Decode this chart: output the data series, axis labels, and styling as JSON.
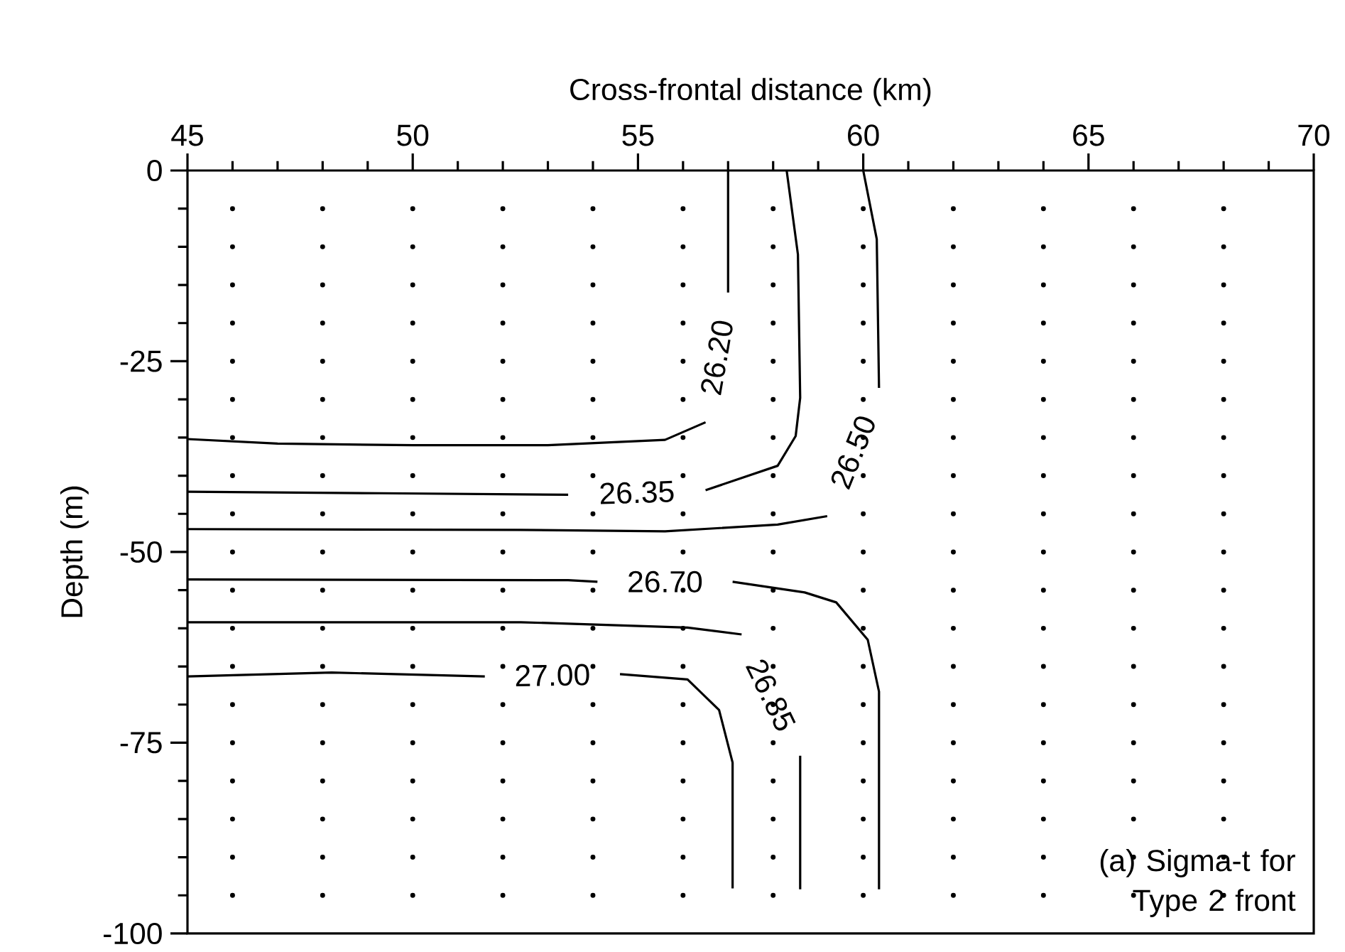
{
  "chart_data": {
    "type": "line",
    "xlabel": "Cross-frontal distance (km)",
    "ylabel": "Depth (m)",
    "xlim": [
      45,
      70
    ],
    "xticks": [
      45,
      50,
      55,
      60,
      65,
      70
    ],
    "ylim": [
      -100,
      0
    ],
    "yticks": [
      0,
      -25,
      -50,
      -75,
      -100
    ],
    "annotations": [
      "(a) Sigma-t for Type 2 front"
    ],
    "series": [
      {
        "name": "26.20",
        "color": "#000000",
        "x": [
          57.0,
          57.0,
          56.75,
          56.5,
          55.6,
          53.0,
          50.0,
          47.0,
          45.0
        ],
        "values": [
          0,
          -16,
          null,
          -33,
          -35.3,
          -36,
          -36,
          -35.8,
          -35.2
        ]
      },
      {
        "name": "26.35",
        "color": "#000000",
        "x": [
          58.3,
          58.55,
          58.6,
          58.5,
          58.1,
          56.5,
          55.0,
          53.45,
          49.3,
          45.0
        ],
        "values": [
          0,
          -11,
          -29.8,
          -34.8,
          -38.7,
          -41.9,
          null,
          -42.5,
          -42.3,
          -42.1
        ]
      },
      {
        "name": "26.50",
        "color": "#000000",
        "x": [
          60.0,
          60.3,
          60.35,
          59.8,
          59.2,
          58.1,
          55.6,
          52.4,
          45.0
        ],
        "values": [
          0,
          -9,
          -28.5,
          null,
          -45.3,
          -46.4,
          -47.3,
          -47.1,
          -47.0
        ]
      },
      {
        "name": "26.70",
        "color": "#000000",
        "x": [
          45.0,
          53.45,
          54.1,
          55.6,
          57.1,
          58.7,
          59.4,
          60.1,
          60.35,
          60.35
        ],
        "values": [
          -53.6,
          -53.7,
          -53.9,
          null,
          -53.9,
          -55.3,
          -56.6,
          -61.5,
          -68.3,
          -94.2
        ]
      },
      {
        "name": "26.85",
        "color": "#000000",
        "x": [
          45.0,
          52.4,
          56.1,
          57.3,
          57.95,
          58.6,
          58.6
        ],
        "values": [
          -59.2,
          -59.2,
          -59.9,
          -60.8,
          null,
          -76.7,
          -94.2
        ]
      },
      {
        "name": "27.00",
        "color": "#000000",
        "x": [
          45.0,
          48.2,
          51.6,
          53.1,
          54.6,
          56.1,
          56.8,
          57.1,
          57.1
        ],
        "values": [
          -66.3,
          -65.8,
          -66.3,
          null,
          -66.0,
          -66.7,
          -70.7,
          -77.6,
          -94.1
        ]
      },
      {
        "type": "scatter",
        "marker": "circle",
        "color": "#000000",
        "x": [
          46,
          48,
          50,
          52,
          54,
          56,
          58,
          60,
          62,
          64,
          66,
          68,
          46,
          48,
          50,
          52,
          54,
          56,
          58,
          60,
          62,
          64,
          66,
          68,
          46,
          48,
          50,
          52,
          54,
          56,
          58,
          60,
          62,
          64,
          66,
          68,
          46,
          48,
          50,
          52,
          54,
          56,
          58,
          60,
          62,
          64,
          66,
          68,
          46,
          48,
          50,
          52,
          54,
          56,
          58,
          60,
          62,
          64,
          66,
          68,
          46,
          48,
          50,
          52,
          54,
          56,
          58,
          60,
          62,
          64,
          66,
          68,
          46,
          48,
          50,
          52,
          54,
          56,
          58,
          60,
          62,
          64,
          66,
          68,
          46,
          48,
          50,
          52,
          54,
          56,
          58,
          60,
          62,
          64,
          66,
          68,
          46,
          48,
          50,
          52,
          54,
          56,
          58,
          60,
          62,
          64,
          66,
          68,
          46,
          48,
          50,
          52,
          54,
          56,
          58,
          60,
          62,
          64,
          66,
          68,
          46,
          48,
          50,
          52,
          54,
          56,
          58,
          60,
          62,
          64,
          66,
          68,
          46,
          48,
          50,
          52,
          54,
          56,
          58,
          60,
          62,
          64,
          66,
          68,
          46,
          48,
          50,
          52,
          54,
          56,
          58,
          60,
          62,
          64,
          66,
          68,
          46,
          48,
          50,
          52,
          54,
          56,
          58,
          60,
          62,
          64,
          66,
          68,
          46,
          48,
          50,
          52,
          54,
          56,
          58,
          60,
          62,
          64,
          66,
          68,
          46,
          48,
          50,
          52,
          54,
          56,
          58,
          60,
          62,
          64,
          66,
          68,
          46,
          48,
          50,
          52,
          54,
          56,
          58,
          60,
          62,
          64,
          66,
          68,
          46,
          48,
          50,
          52,
          54,
          56,
          58,
          60,
          62,
          64,
          66,
          68,
          46,
          48,
          50,
          52,
          54,
          56,
          58,
          60,
          62,
          64,
          66,
          68
        ],
        "values": [
          -5,
          -5,
          -5,
          -5,
          -5,
          -5,
          -5,
          -5,
          -5,
          -5,
          -5,
          -5,
          -10,
          -10,
          -10,
          -10,
          -10,
          -10,
          -10,
          -10,
          -10,
          -10,
          -10,
          -10,
          -15,
          -15,
          -15,
          -15,
          -15,
          -15,
          -15,
          -15,
          -15,
          -15,
          -15,
          -15,
          -20,
          -20,
          -20,
          -20,
          -20,
          -20,
          -20,
          -20,
          -20,
          -20,
          -20,
          -20,
          -25,
          -25,
          -25,
          -25,
          -25,
          -25,
          -25,
          -25,
          -25,
          -25,
          -25,
          -25,
          -30,
          -30,
          -30,
          -30,
          -30,
          -30,
          -30,
          -30,
          -30,
          -30,
          -30,
          -30,
          -35,
          -35,
          -35,
          -35,
          -35,
          -35,
          -35,
          -35,
          -35,
          -35,
          -35,
          -35,
          -40,
          -40,
          -40,
          -40,
          -40,
          -40,
          -40,
          -40,
          -40,
          -40,
          -40,
          -40,
          -45,
          -45,
          -45,
          -45,
          -45,
          -45,
          -45,
          -45,
          -45,
          -45,
          -45,
          -45,
          -50,
          -50,
          -50,
          -50,
          -50,
          -50,
          -50,
          -50,
          -50,
          -50,
          -50,
          -50,
          -55,
          -55,
          -55,
          -55,
          -55,
          -55,
          -55,
          -55,
          -55,
          -55,
          -55,
          -55,
          -60,
          -60,
          -60,
          -60,
          -60,
          -60,
          -60,
          -60,
          -60,
          -60,
          -60,
          -60,
          -65,
          -65,
          -65,
          -65,
          -65,
          -65,
          -65,
          -65,
          -65,
          -65,
          -65,
          -65,
          -70,
          -70,
          -70,
          -70,
          -70,
          -70,
          -70,
          -70,
          -70,
          -70,
          -70,
          -70,
          -75,
          -75,
          -75,
          -75,
          -75,
          -75,
          -75,
          -75,
          -75,
          -75,
          -75,
          -75,
          -80,
          -80,
          -80,
          -80,
          -80,
          -80,
          -80,
          -80,
          -80,
          -80,
          -80,
          -80,
          -85,
          -85,
          -85,
          -85,
          -85,
          -85,
          -85,
          -85,
          -85,
          -85,
          -85,
          -85,
          -90,
          -90,
          -90,
          -90,
          -90,
          -90,
          -90,
          -90,
          -90,
          -90,
          -90,
          -90,
          -95,
          -95,
          -95,
          -95,
          -95,
          -95,
          -95,
          -95,
          -95,
          -95,
          -95,
          -95
        ]
      }
    ]
  }
}
